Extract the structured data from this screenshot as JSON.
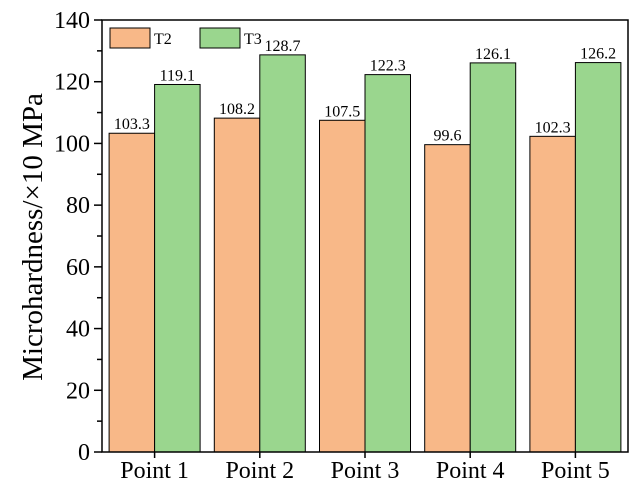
{
  "chart_data": {
    "type": "bar",
    "title": "",
    "xlabel": "",
    "ylabel": "Microhardness/×10 MPa",
    "ylim": [
      0,
      140
    ],
    "yticks": [
      0,
      20,
      40,
      60,
      80,
      100,
      120,
      140
    ],
    "categories": [
      "Point 1",
      "Point 2",
      "Point 3",
      "Point 4",
      "Point 5"
    ],
    "series": [
      {
        "name": "T2",
        "color": "#f8b888",
        "values": [
          103.3,
          108.2,
          107.5,
          99.6,
          102.3
        ]
      },
      {
        "name": "T3",
        "color": "#9ad68e",
        "values": [
          119.1,
          128.7,
          122.3,
          126.1,
          126.2
        ]
      }
    ],
    "data_labels": [
      [
        "103.3",
        "108.2",
        "107.5",
        "99.6",
        "102.3"
      ],
      [
        "119.1",
        "128.7",
        "122.3",
        "126.1",
        "126.2"
      ]
    ],
    "legend_position": "top-left",
    "grid": false
  }
}
